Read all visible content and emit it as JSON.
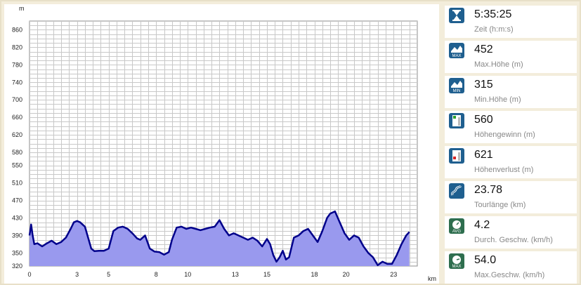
{
  "chart_data": {
    "type": "area",
    "xlabel": "km",
    "ylabel": "m",
    "xlim": [
      0,
      24.5
    ],
    "ylim": [
      320,
      880
    ],
    "xticks": [
      0,
      3,
      5,
      8,
      10,
      13,
      15,
      18,
      20,
      23
    ],
    "yticks": [
      320,
      350,
      390,
      430,
      470,
      510,
      550,
      580,
      620,
      660,
      700,
      740,
      780,
      820,
      860
    ],
    "grid": true,
    "line_color": "#00008b",
    "fill_color": "#9999ee",
    "x": [
      0,
      0.1,
      0.2,
      0.3,
      0.5,
      0.8,
      1.1,
      1.4,
      1.7,
      2.0,
      2.3,
      2.6,
      2.8,
      3.0,
      3.2,
      3.5,
      3.7,
      3.9,
      4.1,
      4.4,
      4.7,
      5.0,
      5.3,
      5.6,
      5.9,
      6.2,
      6.5,
      6.8,
      7.0,
      7.3,
      7.6,
      7.9,
      8.2,
      8.5,
      8.8,
      9.0,
      9.3,
      9.6,
      9.9,
      10.2,
      10.5,
      10.8,
      11.1,
      11.4,
      11.7,
      12.0,
      12.3,
      12.6,
      12.9,
      13.2,
      13.5,
      13.8,
      14.1,
      14.4,
      14.7,
      15.0,
      15.2,
      15.4,
      15.6,
      15.8,
      16.0,
      16.2,
      16.4,
      16.7,
      17.0,
      17.3,
      17.6,
      17.9,
      18.2,
      18.5,
      18.8,
      19.0,
      19.3,
      19.6,
      19.9,
      20.2,
      20.5,
      20.8,
      21.1,
      21.4,
      21.7,
      22.0,
      22.3,
      22.6,
      22.9,
      23.2,
      23.5,
      23.8,
      24.0
    ],
    "y": [
      390,
      415,
      390,
      370,
      372,
      365,
      372,
      378,
      370,
      375,
      385,
      405,
      420,
      423,
      420,
      410,
      385,
      360,
      354,
      355,
      355,
      360,
      400,
      408,
      410,
      405,
      395,
      383,
      380,
      390,
      360,
      353,
      352,
      346,
      352,
      380,
      408,
      410,
      405,
      408,
      405,
      402,
      405,
      408,
      410,
      425,
      405,
      390,
      395,
      390,
      385,
      380,
      385,
      378,
      365,
      382,
      370,
      345,
      330,
      340,
      355,
      335,
      340,
      385,
      390,
      400,
      405,
      390,
      375,
      400,
      430,
      440,
      445,
      420,
      395,
      380,
      390,
      385,
      365,
      350,
      340,
      322,
      330,
      325,
      325,
      345,
      370,
      390,
      398
    ]
  },
  "stats": [
    {
      "icon": "hourglass-icon",
      "value": "5:35:25",
      "label": "Zeit (h:m:s)"
    },
    {
      "icon": "max-height-icon",
      "value": "452",
      "label": "Max.Höhe (m)"
    },
    {
      "icon": "min-height-icon",
      "value": "315",
      "label": "Min.Höhe (m)"
    },
    {
      "icon": "elevation-gain-icon",
      "value": "560",
      "label": "Höhengewinn (m)"
    },
    {
      "icon": "elevation-loss-icon",
      "value": "621",
      "label": "Höhenverlust (m)"
    },
    {
      "icon": "distance-icon",
      "value": "23.78",
      "label": "Tourlänge (km)"
    },
    {
      "icon": "avg-speed-icon",
      "value": "4.2",
      "label": "Durch. Geschw. (km/h)"
    },
    {
      "icon": "max-speed-icon",
      "value": "54.0",
      "label": "Max.Geschw. (km/h)"
    }
  ]
}
